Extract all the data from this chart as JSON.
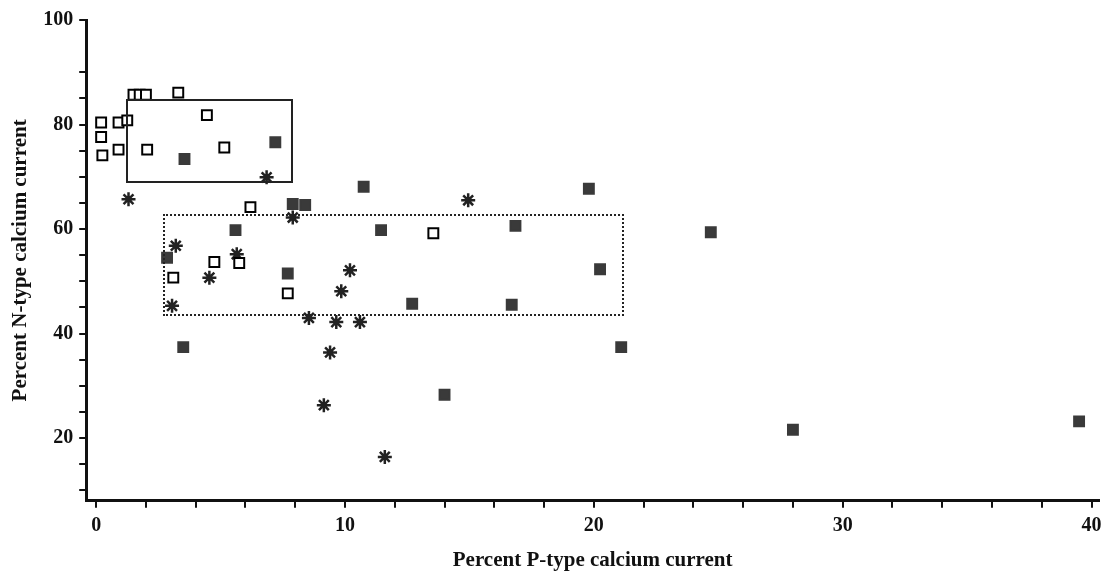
{
  "chart_data": {
    "type": "scatter",
    "xlabel": "Percent P-type calcium current",
    "ylabel": "Percent N-type calcium current",
    "xlim": [
      -0.4,
      40.3
    ],
    "ylim": [
      8,
      100
    ],
    "xticks": [
      0,
      {
        "value": 2,
        "label": null
      },
      {
        "value": 4,
        "label": null
      },
      {
        "value": 6,
        "label": null
      },
      {
        "value": 8,
        "label": null
      },
      10,
      {
        "value": 12,
        "label": null
      },
      {
        "value": 14,
        "label": null
      },
      {
        "value": 16,
        "label": null
      },
      {
        "value": 18,
        "label": null
      },
      20,
      {
        "value": 22,
        "label": null
      },
      {
        "value": 24,
        "label": null
      },
      {
        "value": 26,
        "label": null
      },
      {
        "value": 28,
        "label": null
      },
      30,
      {
        "value": 32,
        "label": null
      },
      {
        "value": 34,
        "label": null
      },
      {
        "value": 36,
        "label": null
      },
      {
        "value": 38,
        "label": null
      },
      40
    ],
    "yticks": [
      {
        "value": 10,
        "label": null
      },
      {
        "value": 15,
        "label": null
      },
      20,
      {
        "value": 25,
        "label": null
      },
      {
        "value": 30,
        "label": null
      },
      {
        "value": 35,
        "label": null
      },
      40,
      {
        "value": 45,
        "label": null
      },
      {
        "value": 50,
        "label": null
      },
      {
        "value": 55,
        "label": null
      },
      60,
      {
        "value": 65,
        "label": null
      },
      {
        "value": 70,
        "label": null
      },
      {
        "value": 75,
        "label": null
      },
      80,
      {
        "value": 85,
        "label": null
      },
      {
        "value": 90,
        "label": null
      },
      100
    ],
    "grid": false,
    "legend": false,
    "series": [
      {
        "marker": "square",
        "color": "#3a3a3a",
        "x": [
          3.55,
          7.2,
          7.9,
          8.4,
          10.75,
          5.6,
          2.85,
          7.7,
          11.45,
          12.7,
          16.85,
          20.25,
          16.7,
          21.1,
          14.0,
          19.8,
          24.7,
          28.0,
          39.5,
          3.5
        ],
        "values": [
          73.4,
          76.6,
          64.8,
          64.6,
          68.1,
          59.8,
          54.5,
          51.5,
          59.8,
          45.7,
          60.6,
          52.3,
          45.5,
          37.4,
          28.3,
          67.7,
          59.4,
          21.6,
          23.2,
          37.4
        ]
      },
      {
        "marker": "square",
        "color": "#000000",
        "x": [
          0.2,
          0.2,
          0.25,
          0.9,
          0.9,
          1.25,
          1.5,
          1.75,
          2.0,
          3.3,
          4.45,
          2.05,
          5.15,
          6.2,
          13.55,
          4.75,
          5.75,
          3.1,
          7.7
        ],
        "values": [
          80.4,
          77.6,
          74.1,
          80.4,
          75.2,
          80.8,
          85.7,
          85.7,
          85.7,
          86.1,
          81.8,
          75.2,
          75.6,
          64.2,
          59.2,
          53.7,
          53.5,
          50.7,
          47.7
        ]
      },
      {
        "marker": "cross",
        "color": "#222222",
        "x": [
          1.3,
          6.85,
          7.9,
          3.2,
          5.65,
          4.55,
          10.2,
          9.85,
          3.05,
          8.55,
          9.65,
          10.6,
          9.4,
          9.15,
          11.6,
          14.95
        ],
        "values": [
          65.7,
          69.9,
          62.2,
          56.8,
          55.2,
          50.7,
          52.1,
          48.1,
          45.3,
          43.0,
          42.2,
          42.2,
          36.4,
          26.3,
          16.4,
          65.5
        ]
      }
    ]
  }
}
